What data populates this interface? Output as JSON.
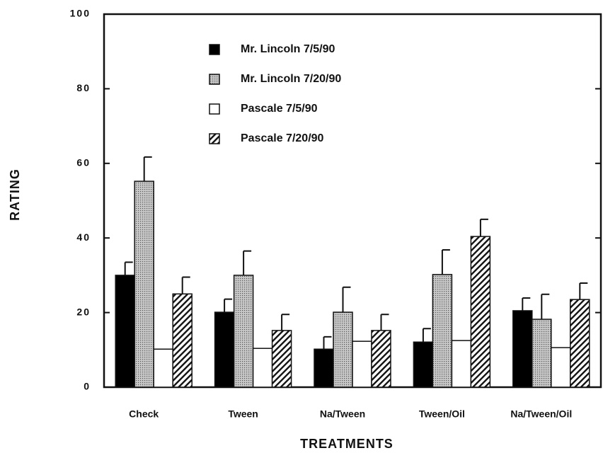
{
  "chart_data": {
    "type": "bar",
    "x_label": "TREATMENTS",
    "y_label": "RATING",
    "categories": [
      "Check",
      "Tween",
      "Na/Tween",
      "Tween/Oil",
      "Na/Tween/Oil"
    ],
    "series": [
      {
        "name": "Mr. Lincoln  7/5/90",
        "color": "#000000",
        "fill_style": "solid",
        "values": [
          30,
          20.1,
          10.2,
          12.1,
          20.5
        ],
        "errors": [
          3.5,
          3.5,
          3.3,
          3.6,
          3.4
        ]
      },
      {
        "name": "Mr. Lincoln  7/20/90",
        "color": "#b5b5b5",
        "fill_style": "stipple",
        "values": [
          55.2,
          30,
          20.1,
          30.2,
          18.2
        ],
        "errors": [
          6.5,
          6.5,
          6.7,
          6.6,
          6.7
        ]
      },
      {
        "name": "Pascale  7/5/90",
        "color": "#ffffff",
        "fill_style": "solid",
        "values": [
          10.2,
          10.4,
          12.3,
          12.5,
          10.6
        ],
        "errors": [
          null,
          null,
          null,
          null,
          null
        ]
      },
      {
        "name": "Pascale  7/20/90",
        "color": "#ffffff",
        "fill_style": "hatch",
        "values": [
          25,
          15.2,
          15.2,
          40.4,
          23.5
        ],
        "errors": [
          4.5,
          4.3,
          4.3,
          4.6,
          4.4
        ]
      }
    ],
    "ylim": [
      0,
      100
    ],
    "yticks": [
      0,
      20,
      40,
      60,
      80,
      100
    ]
  }
}
